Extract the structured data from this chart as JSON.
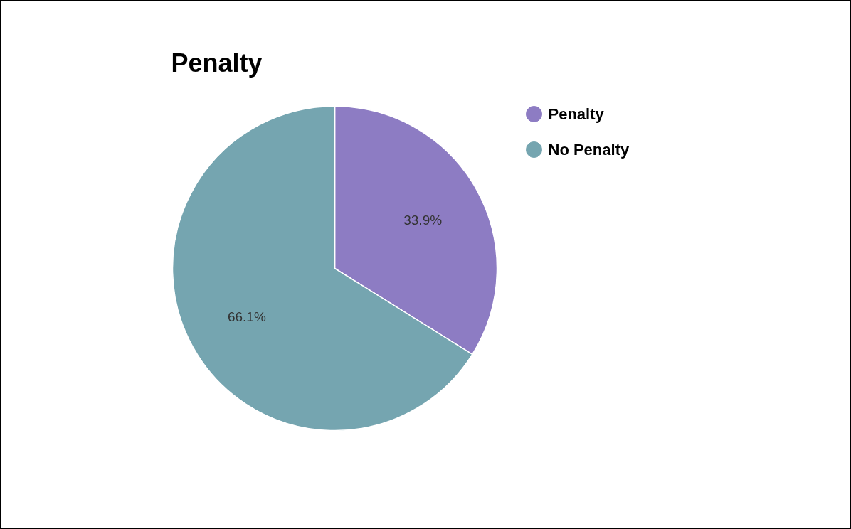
{
  "chart_data": {
    "type": "pie",
    "title": "Penalty",
    "categories": [
      "Penalty",
      "No Penalty"
    ],
    "values": [
      33.9,
      66.1
    ],
    "colors": [
      "#8d7cc3",
      "#75a5b0"
    ],
    "value_labels": [
      "33.9%",
      "66.1%"
    ],
    "legend": "top right"
  }
}
